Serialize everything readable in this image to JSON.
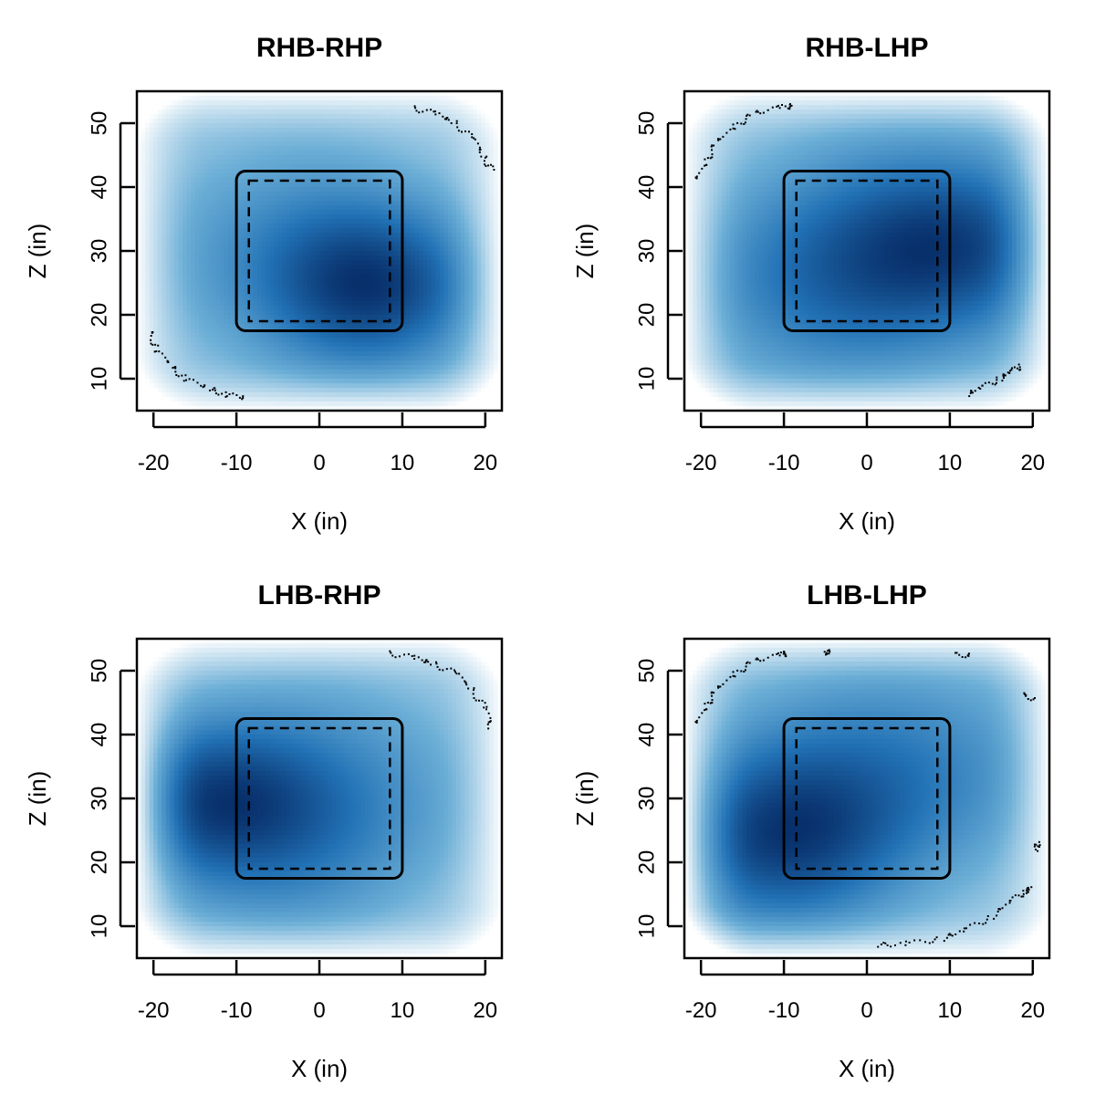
{
  "chart_data": [
    {
      "type": "heatmap",
      "title": "RHB-RHP",
      "xlabel": "X (in)",
      "ylabel": "Z (in)",
      "xlim": [
        -22,
        22
      ],
      "ylim": [
        5,
        55
      ],
      "xticks": [
        -20,
        -10,
        0,
        10,
        20
      ],
      "yticks": [
        10,
        20,
        30,
        40,
        50
      ],
      "grid": false,
      "legend": "none",
      "colormap": [
        "#ffffff",
        "#6baed6",
        "#2171b5",
        "#08306b"
      ],
      "density_peaks": [
        {
          "x": 7,
          "z": 24,
          "weight": 1.0,
          "spread": 9
        },
        {
          "x": -3,
          "z": 30,
          "weight": 0.55,
          "spread": 13
        }
      ],
      "strike_zone": {
        "x_range": [
          -10,
          10
        ],
        "z_range": [
          17.5,
          42.5
        ]
      },
      "inner_zone": {
        "x_range": [
          -8.5,
          8.5
        ],
        "z_range": [
          19,
          41
        ]
      },
      "outlier_arcs": [
        {
          "points": [
            [
              11.5,
              52.3
            ],
            [
              14,
              51.5
            ],
            [
              16.5,
              50
            ],
            [
              18.5,
              47.5
            ],
            [
              20,
              44.5
            ],
            [
              20.8,
              42.5
            ]
          ]
        },
        {
          "points": [
            [
              -20.5,
              17.5
            ],
            [
              -19.5,
              14.5
            ],
            [
              -18,
              12
            ],
            [
              -16,
              10
            ],
            [
              -13.5,
              8.5
            ],
            [
              -11,
              7.5
            ],
            [
              -9,
              7
            ]
          ]
        }
      ]
    },
    {
      "type": "heatmap",
      "title": "RHB-LHP",
      "xlabel": "X (in)",
      "ylabel": "Z (in)",
      "xlim": [
        -22,
        22
      ],
      "ylim": [
        5,
        55
      ],
      "xticks": [
        -20,
        -10,
        0,
        10,
        20
      ],
      "yticks": [
        10,
        20,
        30,
        40,
        50
      ],
      "grid": false,
      "legend": "none",
      "colormap": [
        "#ffffff",
        "#6baed6",
        "#2171b5",
        "#08306b"
      ],
      "density_peaks": [
        {
          "x": 12,
          "z": 31,
          "weight": 0.95,
          "spread": 10
        },
        {
          "x": -6,
          "z": 24,
          "weight": 0.65,
          "spread": 12
        },
        {
          "x": 2,
          "z": 32,
          "weight": 0.55,
          "spread": 14
        }
      ],
      "strike_zone": {
        "x_range": [
          -10,
          10
        ],
        "z_range": [
          17.5,
          42.5
        ]
      },
      "inner_zone": {
        "x_range": [
          -8.5,
          8.5
        ],
        "z_range": [
          19,
          41
        ]
      },
      "outlier_arcs": [
        {
          "points": [
            [
              -20.5,
              41
            ],
            [
              -19.5,
              44
            ],
            [
              -18,
              47
            ],
            [
              -16,
              49.5
            ],
            [
              -13.5,
              51.5
            ],
            [
              -10.5,
              52.5
            ],
            [
              -8.5,
              52.7
            ]
          ]
        },
        {
          "points": [
            [
              12,
              7.5
            ],
            [
              14,
              8.7
            ],
            [
              16,
              10
            ],
            [
              17.5,
              11.2
            ],
            [
              18.5,
              12
            ]
          ]
        }
      ]
    },
    {
      "type": "heatmap",
      "title": "LHB-RHP",
      "xlabel": "X (in)",
      "ylabel": "Z (in)",
      "xlim": [
        -22,
        22
      ],
      "ylim": [
        5,
        55
      ],
      "xticks": [
        -20,
        -10,
        0,
        10,
        20
      ],
      "yticks": [
        10,
        20,
        30,
        40,
        50
      ],
      "grid": false,
      "legend": "none",
      "colormap": [
        "#ffffff",
        "#6baed6",
        "#2171b5",
        "#08306b"
      ],
      "density_peaks": [
        {
          "x": -14,
          "z": 30,
          "weight": 1.0,
          "spread": 9
        },
        {
          "x": -4,
          "z": 24,
          "weight": 0.6,
          "spread": 12
        },
        {
          "x": 2,
          "z": 33,
          "weight": 0.5,
          "spread": 14
        }
      ],
      "strike_zone": {
        "x_range": [
          -10,
          10
        ],
        "z_range": [
          17.5,
          42.5
        ]
      },
      "inner_zone": {
        "x_range": [
          -8.5,
          8.5
        ],
        "z_range": [
          19,
          41
        ]
      },
      "outlier_arcs": [
        {
          "points": [
            [
              8.5,
              52.7
            ],
            [
              11.5,
              52
            ],
            [
              14,
              51
            ],
            [
              16.5,
              49.5
            ],
            [
              18.5,
              47
            ],
            [
              20,
              44
            ],
            [
              20.8,
              40.5
            ]
          ]
        }
      ]
    },
    {
      "type": "heatmap",
      "title": "LHB-LHP",
      "xlabel": "X (in)",
      "ylabel": "Z (in)",
      "xlim": [
        -22,
        22
      ],
      "ylim": [
        5,
        55
      ],
      "xticks": [
        -20,
        -10,
        0,
        10,
        20
      ],
      "yticks": [
        10,
        20,
        30,
        40,
        50
      ],
      "grid": false,
      "legend": "none",
      "colormap": [
        "#ffffff",
        "#6baed6",
        "#2171b5",
        "#08306b"
      ],
      "density_peaks": [
        {
          "x": -11,
          "z": 23,
          "weight": 1.0,
          "spread": 10
        },
        {
          "x": -3,
          "z": 33,
          "weight": 0.5,
          "spread": 13
        },
        {
          "x": 10,
          "z": 35,
          "weight": 0.35,
          "spread": 12
        }
      ],
      "strike_zone": {
        "x_range": [
          -10,
          10
        ],
        "z_range": [
          17.5,
          42.5
        ]
      },
      "inner_zone": {
        "x_range": [
          -8.5,
          8.5
        ],
        "z_range": [
          19,
          41
        ]
      },
      "outlier_arcs": [
        {
          "points": [
            [
              -20.5,
              41.5
            ],
            [
              -19.5,
              44.5
            ],
            [
              -18,
              47
            ],
            [
              -16,
              49.5
            ],
            [
              -13.5,
              51.5
            ],
            [
              -10.5,
              52.5
            ],
            [
              -9.5,
              52.7
            ]
          ]
        },
        {
          "points": [
            [
              1,
              7
            ],
            [
              5,
              7.3
            ],
            [
              9,
              8
            ],
            [
              12,
              9.5
            ],
            [
              15,
              11.5
            ],
            [
              17.5,
              14
            ],
            [
              19,
              15.5
            ],
            [
              20,
              16
            ]
          ]
        },
        {
          "points": [
            [
              -5,
              53
            ],
            [
              -4.5,
              52.8
            ]
          ]
        },
        {
          "points": [
            [
              11,
              52.5
            ],
            [
              12.5,
              52.3
            ]
          ]
        },
        {
          "points": [
            [
              19,
              46.5
            ],
            [
              20,
              45.3
            ]
          ]
        },
        {
          "points": [
            [
              20.5,
              23
            ],
            [
              20.6,
              22
            ]
          ]
        }
      ]
    }
  ]
}
